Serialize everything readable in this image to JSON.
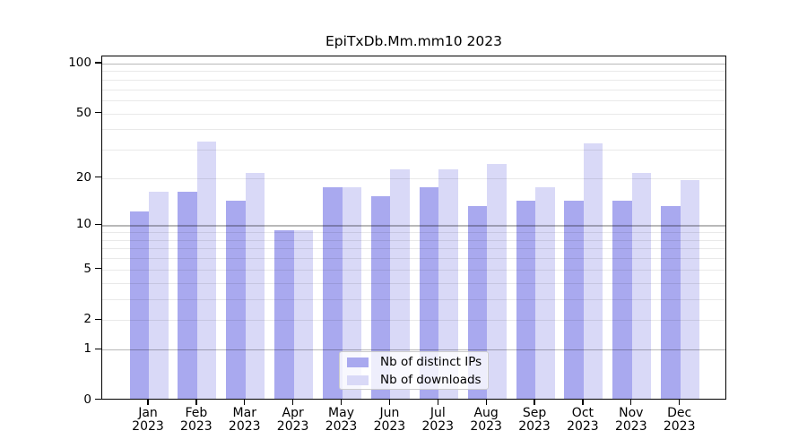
{
  "title": "EpiTxDb.Mm.mm10 2023",
  "chart_data": {
    "type": "bar",
    "title": "EpiTxDb.Mm.mm10 2023",
    "categories": [
      "Jan",
      "Feb",
      "Mar",
      "Apr",
      "May",
      "Jun",
      "Jul",
      "Aug",
      "Sep",
      "Oct",
      "Nov",
      "Dec"
    ],
    "x_year_label": "2023",
    "series": [
      {
        "name": "Nb of distinct IPs",
        "color": "#a9a9ef",
        "values": [
          12,
          16,
          14,
          9,
          17,
          15,
          17,
          13,
          14,
          14,
          14,
          13
        ]
      },
      {
        "name": "Nb of downloads",
        "color": "#d9d9f7",
        "values": [
          16,
          33,
          21,
          9,
          17,
          22,
          22,
          24,
          17,
          32,
          21,
          19
        ]
      }
    ],
    "xlabel": "",
    "ylabel": "",
    "y_scale": "log1p",
    "ylim": [
      0,
      112
    ],
    "y_ticks": [
      0,
      1,
      2,
      5,
      10,
      20,
      50,
      100
    ],
    "y_major_gridlines": [
      1,
      10,
      100
    ],
    "y_minor_gridlines": [
      2,
      3,
      4,
      5,
      6,
      7,
      8,
      9,
      20,
      30,
      40,
      50,
      60,
      70,
      80,
      90
    ],
    "grid": true,
    "legend_position": "lower center",
    "frame": "full box",
    "colors": {
      "spine": "#000000",
      "bar_ips": "#a9a9ef",
      "bar_downloads": "#d9d9f7",
      "legend_border": "#cccccc"
    }
  }
}
